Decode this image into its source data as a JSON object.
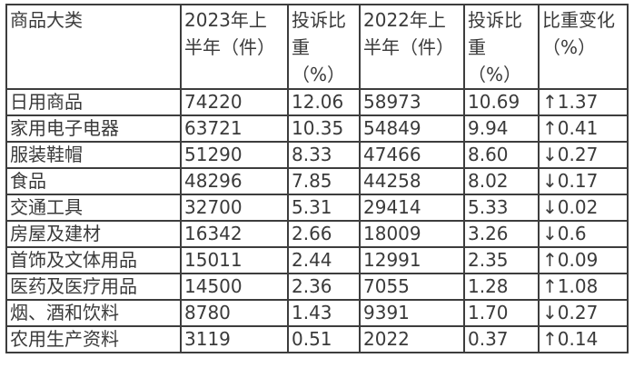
{
  "chart_data": {
    "type": "table",
    "columns": [
      "商品大类",
      "2023年上半年（件）",
      "投诉比重（%）",
      "2022年上半年（件）",
      "投诉比重（%）",
      "比重变化（%）"
    ],
    "rows": [
      [
        "日用商品",
        "74220",
        "12.06",
        "58973",
        "10.69",
        "↑1.37"
      ],
      [
        "家用电子电器",
        "63721",
        "10.35",
        "54849",
        "9.94",
        "↑0.41"
      ],
      [
        "服装鞋帽",
        "51290",
        "8.33",
        "47466",
        "8.60",
        "↓0.27"
      ],
      [
        "食品",
        "48296",
        "7.85",
        "44258",
        "8.02",
        "↓0.17"
      ],
      [
        "交通工具",
        "32700",
        "5.31",
        "29414",
        "5.33",
        "↓0.02"
      ],
      [
        "房屋及建材",
        "16342",
        "2.66",
        "18009",
        "3.26",
        "↓0.6"
      ],
      [
        "首饰及文体用品",
        "15011",
        "2.44",
        "12991",
        "2.35",
        "↑0.09"
      ],
      [
        "医药及医疗用品",
        "14500",
        "2.36",
        "7055",
        "1.28",
        "↑1.08"
      ],
      [
        "烟、酒和饮料",
        "8780",
        "1.43",
        "9391",
        "1.70",
        "↓0.27"
      ],
      [
        "农用生产资料",
        "3119",
        "0.51",
        "2022",
        "0.37",
        "↑0.14"
      ]
    ]
  },
  "header_display": {
    "category": "商品大类",
    "count_2023": "2023年上\n半年（件）",
    "share_2023": "投诉比\n重\n（%）",
    "count_2022": "2022年上\n半年（件）",
    "share_2022": "投诉比\n重\n（%）",
    "change": "比重变化\n（%）"
  },
  "colors": {
    "text": "#3a3a3a",
    "border": "#3d3d3d",
    "background": "#ffffff"
  }
}
